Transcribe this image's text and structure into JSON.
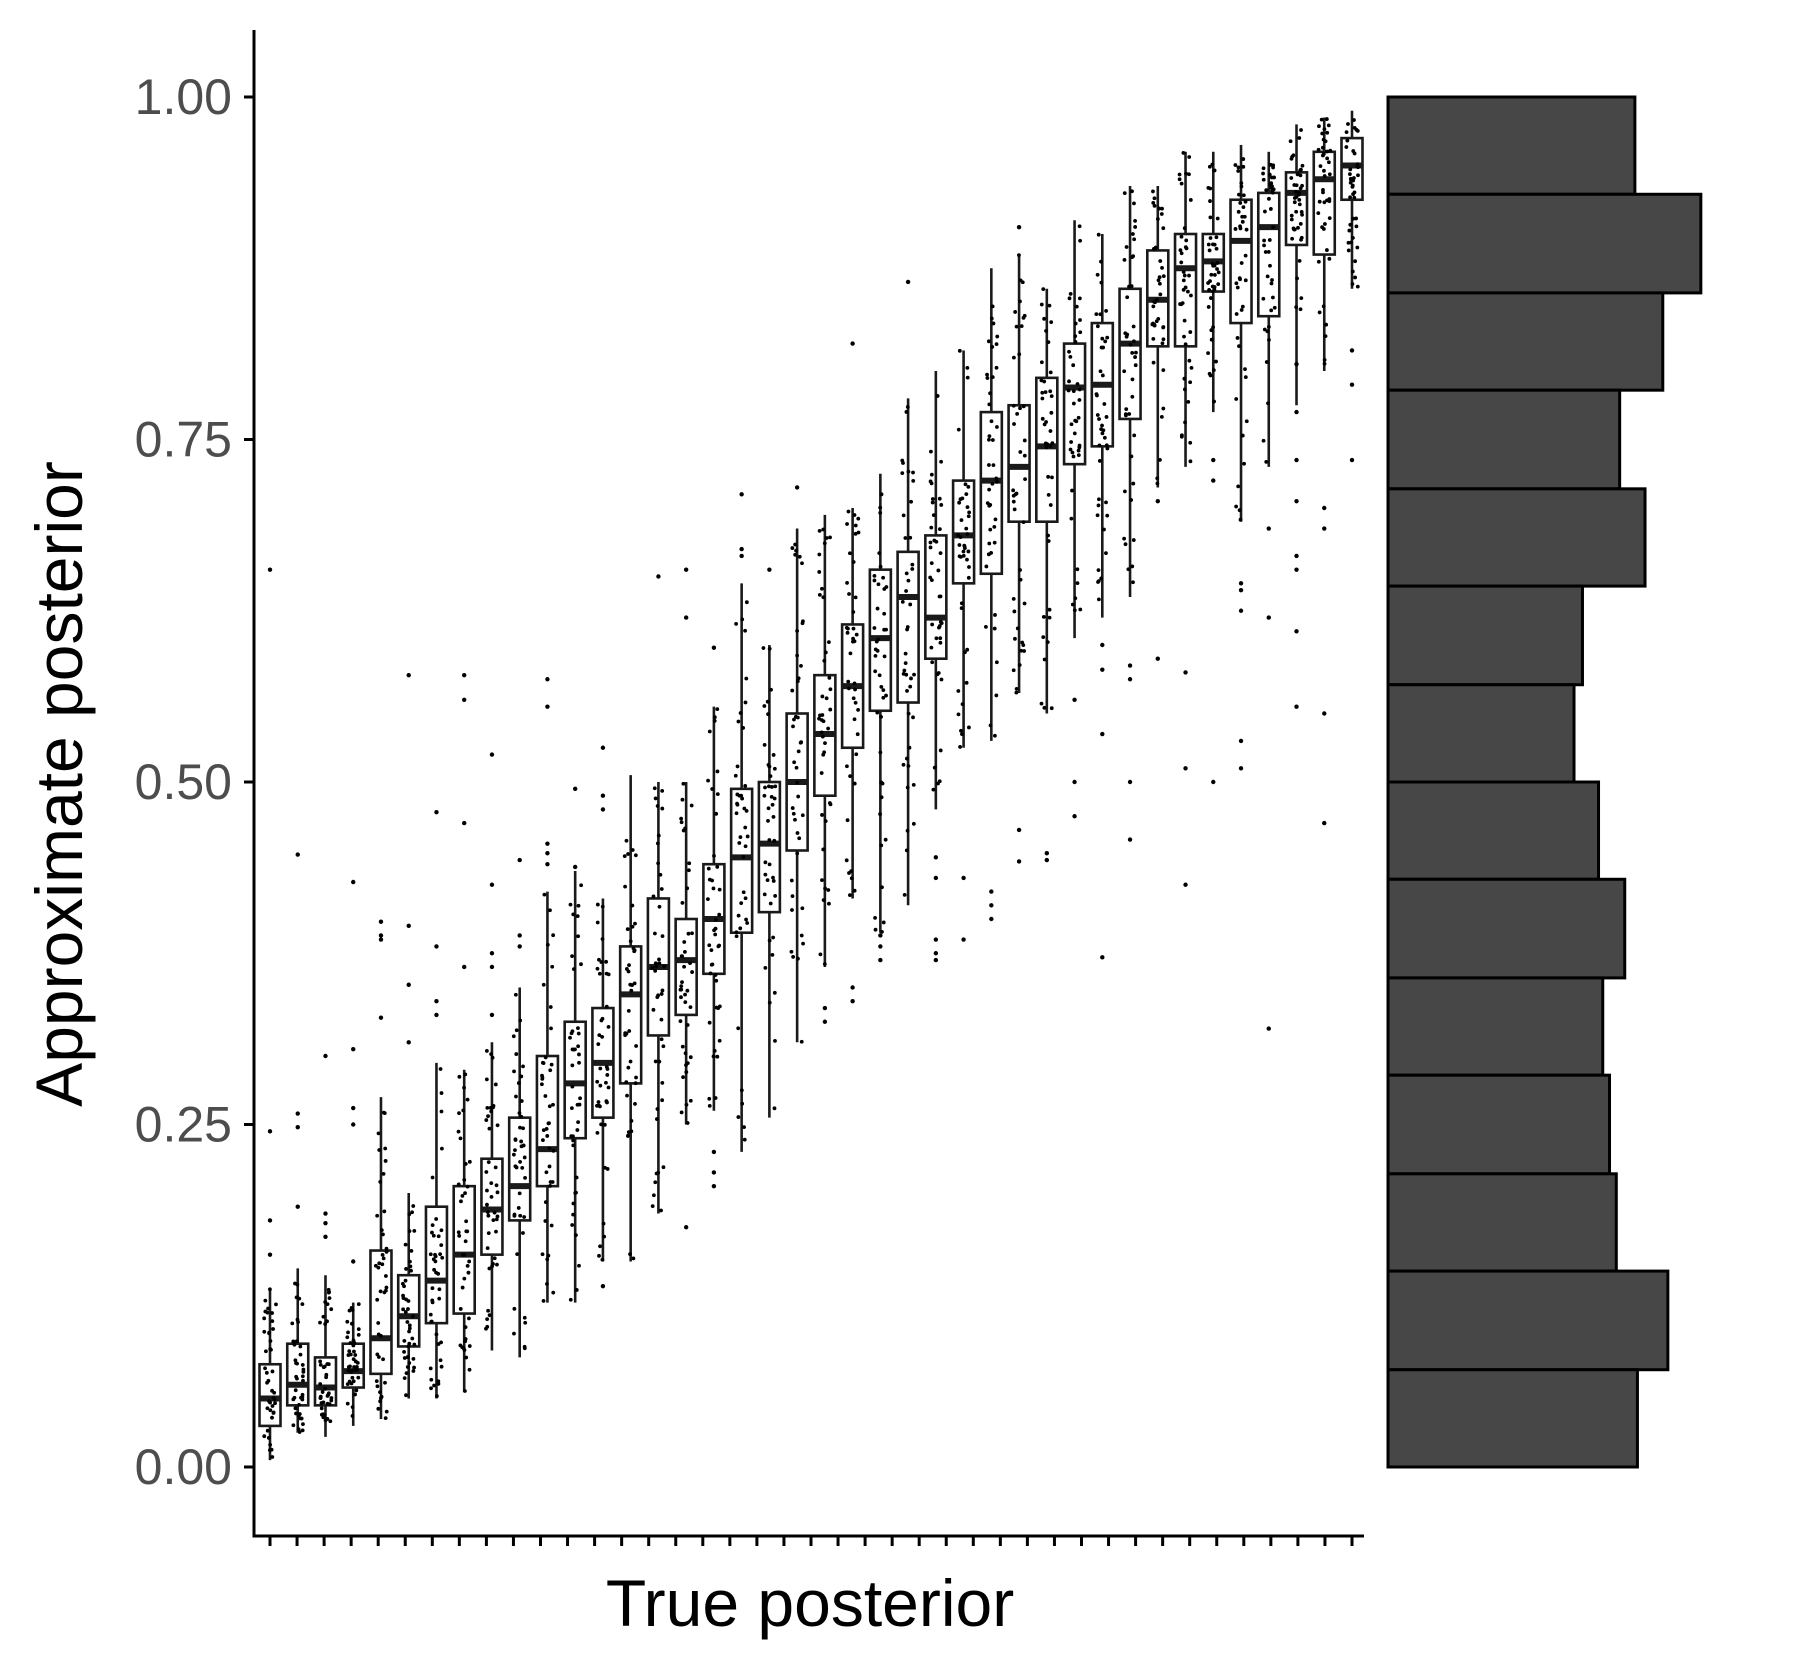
{
  "chart_data": {
    "type": "boxplot",
    "xlabel": "True posterior",
    "ylabel": "Approximate posterior",
    "ylim": [
      -0.05,
      1.05
    ],
    "yticks": [
      {
        "value": 0.0,
        "label": "0.00"
      },
      {
        "value": 0.25,
        "label": "0.25"
      },
      {
        "value": 0.5,
        "label": "0.50"
      },
      {
        "value": 0.75,
        "label": "0.75"
      },
      {
        "value": 1.0,
        "label": "1.00"
      }
    ],
    "x_tick_count": 41,
    "boxes": [
      {
        "q1": 0.03,
        "med": 0.05,
        "q3": 0.075,
        "lo": 0.005,
        "hi": 0.13,
        "out": [
          0.655,
          0.245,
          0.18,
          0.155
        ]
      },
      {
        "q1": 0.045,
        "med": 0.06,
        "q3": 0.09,
        "lo": 0.025,
        "hi": 0.145,
        "out": [
          0.447,
          0.258,
          0.248,
          0.19
        ]
      },
      {
        "q1": 0.045,
        "med": 0.058,
        "q3": 0.08,
        "lo": 0.022,
        "hi": 0.14,
        "out": [
          0.3,
          0.185,
          0.178,
          0.168
        ]
      },
      {
        "q1": 0.058,
        "med": 0.07,
        "q3": 0.09,
        "lo": 0.03,
        "hi": 0.12,
        "out": [
          0.427,
          0.305,
          0.262,
          0.25,
          0.15
        ]
      },
      {
        "q1": 0.068,
        "med": 0.094,
        "q3": 0.158,
        "lo": 0.035,
        "hi": 0.27,
        "out": [
          0.398,
          0.388,
          0.385,
          0.328
        ]
      },
      {
        "q1": 0.088,
        "med": 0.11,
        "q3": 0.14,
        "lo": 0.05,
        "hi": 0.2,
        "out": [
          0.578,
          0.395,
          0.352,
          0.31
        ]
      },
      {
        "q1": 0.105,
        "med": 0.136,
        "q3": 0.19,
        "lo": 0.05,
        "hi": 0.295,
        "out": [
          0.478,
          0.38,
          0.34,
          0.33
        ]
      },
      {
        "q1": 0.112,
        "med": 0.155,
        "q3": 0.205,
        "lo": 0.055,
        "hi": 0.29,
        "out": [
          0.578,
          0.56,
          0.47,
          0.365
        ]
      },
      {
        "q1": 0.155,
        "med": 0.188,
        "q3": 0.225,
        "lo": 0.085,
        "hi": 0.31,
        "out": [
          0.52,
          0.425,
          0.375,
          0.365,
          0.33
        ]
      },
      {
        "q1": 0.18,
        "med": 0.205,
        "q3": 0.255,
        "lo": 0.08,
        "hi": 0.35,
        "out": [
          0.443,
          0.388,
          0.38
        ]
      },
      {
        "q1": 0.205,
        "med": 0.232,
        "q3": 0.3,
        "lo": 0.12,
        "hi": 0.42,
        "out": [
          0.575,
          0.555,
          0.455,
          0.448,
          0.44
        ]
      },
      {
        "q1": 0.24,
        "med": 0.28,
        "q3": 0.325,
        "lo": 0.12,
        "hi": 0.435,
        "out": [
          0.495,
          0.438
        ]
      },
      {
        "q1": 0.255,
        "med": 0.295,
        "q3": 0.335,
        "lo": 0.15,
        "hi": 0.415,
        "out": [
          0.525,
          0.49,
          0.48,
          0.132
        ]
      },
      {
        "q1": 0.28,
        "med": 0.345,
        "q3": 0.38,
        "lo": 0.15,
        "hi": 0.505,
        "out": []
      },
      {
        "q1": 0.315,
        "med": 0.365,
        "q3": 0.415,
        "lo": 0.185,
        "hi": 0.5,
        "out": [
          0.65
        ]
      },
      {
        "q1": 0.33,
        "med": 0.37,
        "q3": 0.4,
        "lo": 0.25,
        "hi": 0.5,
        "out": [
          0.655,
          0.62,
          0.175
        ]
      },
      {
        "q1": 0.36,
        "med": 0.4,
        "q3": 0.44,
        "lo": 0.26,
        "hi": 0.555,
        "out": [
          0.598,
          0.23,
          0.215,
          0.205
        ]
      },
      {
        "q1": 0.39,
        "med": 0.445,
        "q3": 0.495,
        "lo": 0.23,
        "hi": 0.645,
        "out": [
          0.71,
          0.67,
          0.665
        ]
      },
      {
        "q1": 0.405,
        "med": 0.455,
        "q3": 0.5,
        "lo": 0.255,
        "hi": 0.6,
        "out": [
          0.655
        ]
      },
      {
        "q1": 0.45,
        "med": 0.5,
        "q3": 0.55,
        "lo": 0.31,
        "hi": 0.685,
        "out": [
          0.715
        ]
      },
      {
        "q1": 0.49,
        "med": 0.535,
        "q3": 0.578,
        "lo": 0.365,
        "hi": 0.695,
        "out": [
          0.335,
          0.325
        ]
      },
      {
        "q1": 0.525,
        "med": 0.57,
        "q3": 0.615,
        "lo": 0.415,
        "hi": 0.7,
        "out": [
          0.82,
          0.35,
          0.34
        ]
      },
      {
        "q1": 0.552,
        "med": 0.605,
        "q3": 0.655,
        "lo": 0.39,
        "hi": 0.725,
        "out": [
          0.388,
          0.38,
          0.37
        ]
      },
      {
        "q1": 0.558,
        "med": 0.635,
        "q3": 0.668,
        "lo": 0.41,
        "hi": 0.78,
        "out": [
          0.865
        ]
      },
      {
        "q1": 0.59,
        "med": 0.62,
        "q3": 0.68,
        "lo": 0.48,
        "hi": 0.8,
        "out": [
          0.445,
          0.43,
          0.385,
          0.375,
          0.37
        ]
      },
      {
        "q1": 0.645,
        "med": 0.68,
        "q3": 0.72,
        "lo": 0.525,
        "hi": 0.815,
        "out": [
          0.43,
          0.385
        ]
      },
      {
        "q1": 0.652,
        "med": 0.72,
        "q3": 0.77,
        "lo": 0.53,
        "hi": 0.875,
        "out": [
          0.42,
          0.41,
          0.4
        ]
      },
      {
        "q1": 0.69,
        "med": 0.73,
        "q3": 0.775,
        "lo": 0.565,
        "hi": 0.885,
        "out": [
          0.905,
          0.465,
          0.442
        ]
      },
      {
        "q1": 0.69,
        "med": 0.745,
        "q3": 0.795,
        "lo": 0.55,
        "hi": 0.86,
        "out": [
          0.448,
          0.443
        ]
      },
      {
        "q1": 0.732,
        "med": 0.788,
        "q3": 0.82,
        "lo": 0.605,
        "hi": 0.91,
        "out": [
          0.56,
          0.5,
          0.475
        ]
      },
      {
        "q1": 0.745,
        "med": 0.79,
        "q3": 0.835,
        "lo": 0.62,
        "hi": 0.9,
        "out": [
          0.6,
          0.582,
          0.535,
          0.372
        ]
      },
      {
        "q1": 0.765,
        "med": 0.82,
        "q3": 0.86,
        "lo": 0.635,
        "hi": 0.935,
        "out": [
          0.585,
          0.575,
          0.5,
          0.458
        ]
      },
      {
        "q1": 0.818,
        "med": 0.852,
        "q3": 0.888,
        "lo": 0.715,
        "hi": 0.935,
        "out": [
          0.705,
          0.59
        ]
      },
      {
        "q1": 0.818,
        "med": 0.875,
        "q3": 0.9,
        "lo": 0.73,
        "hi": 0.96,
        "out": [
          0.58,
          0.51,
          0.425
        ]
      },
      {
        "q1": 0.858,
        "med": 0.88,
        "q3": 0.9,
        "lo": 0.77,
        "hi": 0.96,
        "out": [
          0.735,
          0.72,
          0.5
        ]
      },
      {
        "q1": 0.835,
        "med": 0.895,
        "q3": 0.925,
        "lo": 0.69,
        "hi": 0.965,
        "out": [
          0.645,
          0.64,
          0.625,
          0.53,
          0.51
        ]
      },
      {
        "q1": 0.84,
        "med": 0.905,
        "q3": 0.93,
        "lo": 0.73,
        "hi": 0.96,
        "out": [
          0.685,
          0.62,
          0.32
        ]
      },
      {
        "q1": 0.892,
        "med": 0.93,
        "q3": 0.945,
        "lo": 0.775,
        "hi": 0.98,
        "out": [
          0.805,
          0.77,
          0.735,
          0.705,
          0.665,
          0.655,
          0.61,
          0.555
        ]
      },
      {
        "q1": 0.885,
        "med": 0.94,
        "q3": 0.96,
        "lo": 0.8,
        "hi": 0.985,
        "out": [
          0.7,
          0.685,
          0.55,
          0.47
        ]
      },
      {
        "q1": 0.925,
        "med": 0.95,
        "q3": 0.97,
        "lo": 0.86,
        "hi": 0.99,
        "out": [
          0.815,
          0.79,
          0.735
        ]
      }
    ],
    "marginal_histogram": {
      "orientation": "horizontal",
      "bins": [
        {
          "lo": 0.929,
          "hi": 1.0,
          "count": 292
        },
        {
          "lo": 0.857,
          "hi": 0.929,
          "count": 370
        },
        {
          "lo": 0.786,
          "hi": 0.857,
          "count": 325
        },
        {
          "lo": 0.714,
          "hi": 0.786,
          "count": 274
        },
        {
          "lo": 0.643,
          "hi": 0.714,
          "count": 304
        },
        {
          "lo": 0.571,
          "hi": 0.643,
          "count": 230
        },
        {
          "lo": 0.5,
          "hi": 0.571,
          "count": 220
        },
        {
          "lo": 0.429,
          "hi": 0.5,
          "count": 249
        },
        {
          "lo": 0.357,
          "hi": 0.429,
          "count": 280
        },
        {
          "lo": 0.286,
          "hi": 0.357,
          "count": 254
        },
        {
          "lo": 0.214,
          "hi": 0.286,
          "count": 262
        },
        {
          "lo": 0.143,
          "hi": 0.214,
          "count": 270
        },
        {
          "lo": 0.071,
          "hi": 0.143,
          "count": 331
        },
        {
          "lo": 0.0,
          "hi": 0.071,
          "count": 295
        }
      ]
    }
  }
}
